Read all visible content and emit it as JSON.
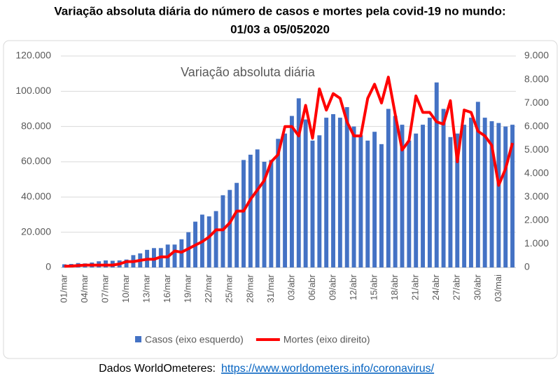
{
  "chart_data": {
    "type": "bar_line",
    "title": "Variação absoluta diária do número de casos e mortes pela covid-19 no mundo:",
    "subtitle": "01/03 a 05/052020",
    "annotation": "Variação absoluta diária",
    "source_label": "Dados WorldOmeteres:",
    "source_url": "https://www.worldometers.info/coronavirus/",
    "categories": [
      "01/mar",
      null,
      null,
      "04/mar",
      null,
      null,
      "07/mar",
      null,
      null,
      "10/mar",
      null,
      null,
      "13/mar",
      null,
      null,
      "16/mar",
      null,
      null,
      "19/mar",
      null,
      null,
      "22/mar",
      null,
      null,
      "25/mar",
      null,
      null,
      "28/mar",
      null,
      null,
      "31/mar",
      null,
      null,
      "03/abr",
      null,
      null,
      "06/abr",
      null,
      null,
      "09/abr",
      null,
      null,
      "12/abr",
      null,
      null,
      "15/abr",
      null,
      null,
      "18/abr",
      null,
      null,
      "21/abr",
      null,
      null,
      "24/abr",
      null,
      null,
      "27/abr",
      null,
      null,
      "30/abr",
      null,
      null,
      "03/mai",
      null,
      null
    ],
    "series": [
      {
        "name": "Casos (eixo esquerdo)",
        "color": "#4472c4",
        "kind": "bar",
        "values": [
          1800,
          2000,
          2500,
          2300,
          2800,
          3500,
          4000,
          3800,
          4000,
          4500,
          7000,
          8000,
          10000,
          11000,
          11000,
          13000,
          13000,
          16000,
          20000,
          26000,
          30000,
          29000,
          32000,
          41000,
          44000,
          48000,
          61000,
          64000,
          67000,
          60000,
          61000,
          73000,
          76000,
          86000,
          96000,
          84000,
          72000,
          75000,
          85000,
          87000,
          85000,
          91000,
          80000,
          75000,
          72000,
          77000,
          70000,
          90000,
          86000,
          81000,
          72000,
          76000,
          81000,
          85000,
          105000,
          90000,
          74000,
          76000,
          81000,
          85000,
          94000,
          85000,
          83000,
          82000,
          80000,
          81000
        ]
      },
      {
        "name": "Mortes (eixo direito)",
        "color": "#ff0000",
        "kind": "line",
        "axis": "y2",
        "values": [
          50,
          60,
          80,
          100,
          100,
          100,
          100,
          100,
          150,
          250,
          250,
          300,
          350,
          350,
          450,
          450,
          700,
          650,
          800,
          950,
          1100,
          1300,
          1600,
          1600,
          1900,
          2400,
          2400,
          2900,
          3300,
          3700,
          4500,
          4800,
          6000,
          6000,
          5600,
          6900,
          5500,
          7600,
          6700,
          7400,
          7200,
          6200,
          5600,
          5600,
          7200,
          7800,
          7000,
          8100,
          6500,
          5000,
          5400,
          7300,
          6600,
          6600,
          6200,
          6100,
          7100,
          4500,
          6700,
          6600,
          5800,
          5600,
          5200,
          3500,
          4200,
          5300
        ]
      }
    ],
    "ylim": [
      0,
      120000
    ],
    "yticks": [
      0,
      {
        "value": 20000,
        "label": "20.000"
      },
      {
        "value": 40000,
        "label": "40.000"
      },
      {
        "value": 60000,
        "label": "60.000"
      },
      {
        "value": 80000,
        "label": "80.000"
      },
      {
        "value": 100000,
        "label": "100.000"
      },
      {
        "value": 120000,
        "label": "120.000"
      }
    ],
    "y2lim": [
      0,
      9000
    ],
    "y2ticks": [
      0,
      {
        "value": 1000,
        "label": "1.000"
      },
      {
        "value": 2000,
        "label": "2.000"
      },
      {
        "value": 3000,
        "label": "3.000"
      },
      {
        "value": 4000,
        "label": "4.000"
      },
      {
        "value": 5000,
        "label": "5.000"
      },
      {
        "value": 6000,
        "label": "6.000"
      },
      {
        "value": 7000,
        "label": "7.000"
      },
      {
        "value": 8000,
        "label": "8.000"
      },
      {
        "value": 9000,
        "label": "9.000"
      }
    ],
    "grid": true,
    "legend": "bottom"
  }
}
